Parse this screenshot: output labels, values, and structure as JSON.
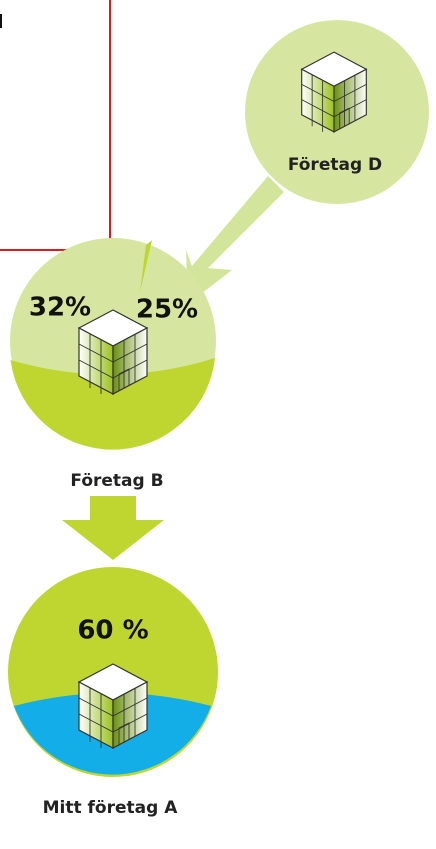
{
  "nodes": [
    {
      "label": "Företag D"
    },
    {
      "label": "Företag B",
      "shares": [
        "32%",
        "25%"
      ]
    },
    {
      "label": "Mitt företag A",
      "shares": [
        "60 %"
      ]
    }
  ]
}
